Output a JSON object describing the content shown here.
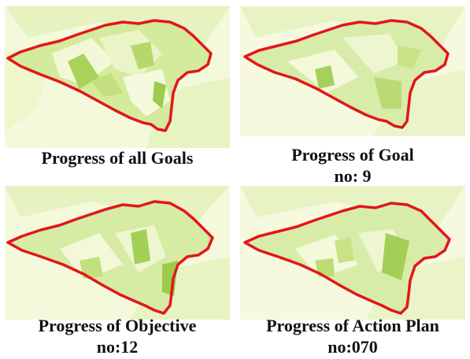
{
  "panels": [
    {
      "caption": "Progress of all Goals",
      "caption_line2": ""
    },
    {
      "caption": "Progress of Goal",
      "caption_line2": "no: 9"
    },
    {
      "caption": "Progress of Objective",
      "caption_line2": "no:12"
    },
    {
      "caption": "Progress of Action Plan",
      "caption_line2": "no:070"
    }
  ],
  "colors": {
    "boundary": "#e3161b",
    "fill_light": "#f4f8d8",
    "fill_mid": "#d5eb9e",
    "fill_dark": "#9ccc4a",
    "fill_pale": "#fbfce9"
  }
}
